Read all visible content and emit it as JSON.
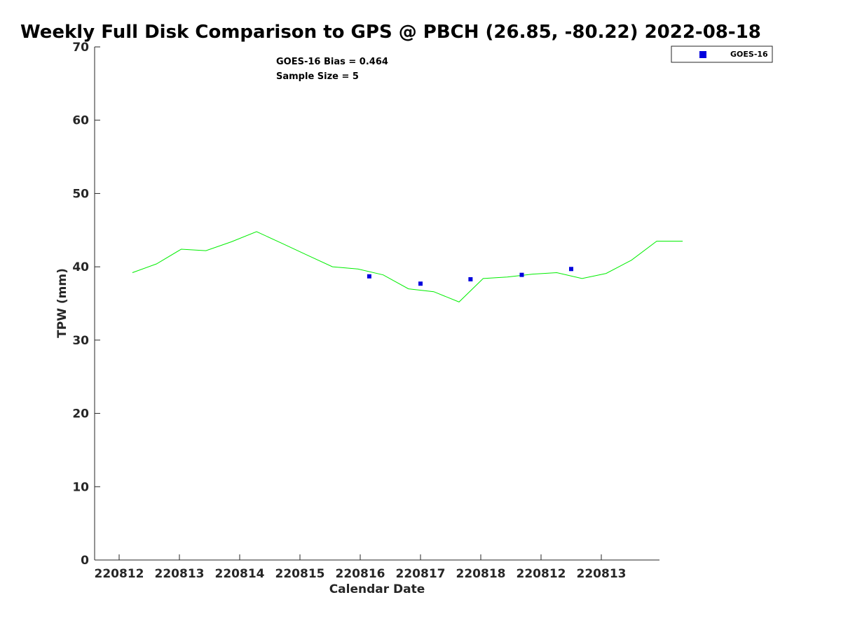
{
  "chart_data": {
    "type": "line",
    "title": "Weekly Full Disk Comparison to GPS @ PBCH (26.85, -80.22) 2022-08-18",
    "xlabel": "Calendar Date",
    "ylabel": "TPW (mm)",
    "ylim": [
      0,
      70
    ],
    "yticks": [
      0,
      10,
      20,
      30,
      40,
      50,
      60,
      70
    ],
    "xlim": [
      0,
      9.35
    ],
    "xticks": [
      {
        "x": 0,
        "label": "220812"
      },
      {
        "x": 1,
        "label": "220813"
      },
      {
        "x": 2,
        "label": "220814"
      },
      {
        "x": 3,
        "label": "220815"
      },
      {
        "x": 4,
        "label": "220816"
      },
      {
        "x": 5,
        "label": "220817"
      },
      {
        "x": 6,
        "label": "220818"
      },
      {
        "x": 7,
        "label": "220812"
      },
      {
        "x": 8,
        "label": "220813"
      }
    ],
    "series": [
      {
        "type": "line",
        "color": "#00ee00",
        "x": [
          0.22,
          0.62,
          1.03,
          1.44,
          1.86,
          2.28,
          2.7,
          3.12,
          3.54,
          3.96,
          4.38,
          4.8,
          5.22,
          5.64,
          6.04,
          6.44,
          6.86,
          7.26,
          7.68,
          8.08,
          8.5,
          8.92,
          9.35
        ],
        "y": [
          39.2,
          40.4,
          42.4,
          42.2,
          43.4,
          44.8,
          43.2,
          41.6,
          40.0,
          39.7,
          38.9,
          37.0,
          36.6,
          35.2,
          38.4,
          38.6,
          39.0,
          39.2,
          38.4,
          39.1,
          40.9,
          43.5,
          43.5
        ]
      },
      {
        "name": "GOES-16",
        "type": "scatter",
        "color": "#0000dd",
        "x": [
          4.15,
          5.0,
          5.83,
          6.68,
          7.5
        ],
        "y": [
          38.7,
          37.7,
          38.3,
          38.9,
          39.7
        ]
      }
    ],
    "annotations": [
      "GOES-16 Bias = 0.464",
      "Sample Size = 5"
    ],
    "legend": {
      "position": "top-right",
      "entries": [
        "GOES-16"
      ]
    },
    "grid": false
  }
}
